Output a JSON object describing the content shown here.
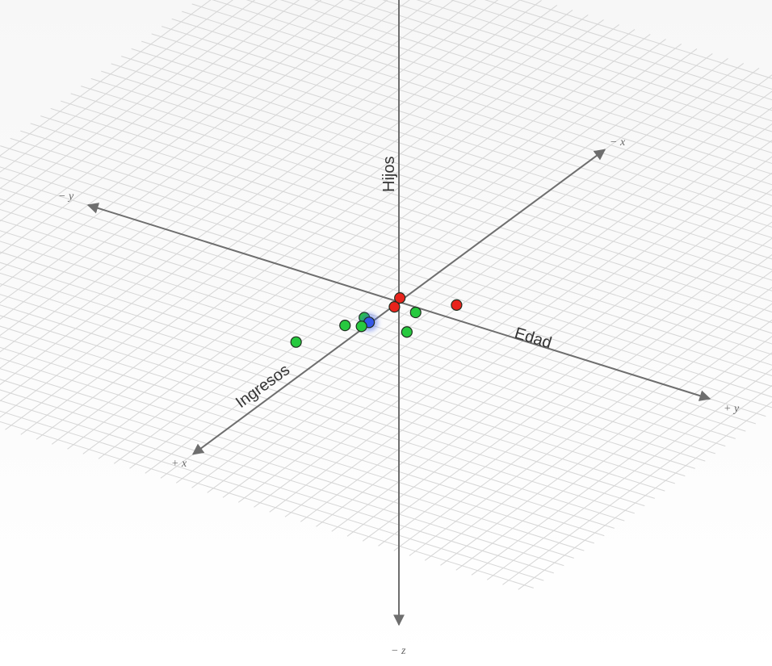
{
  "chart_data": {
    "type": "scatter",
    "title": "",
    "axes": {
      "x": {
        "label": "Ingresos",
        "positive_end": "+ x",
        "negative_end": "− x"
      },
      "y": {
        "label": "Edad",
        "positive_end": "+ y",
        "negative_end": "− y"
      },
      "z": {
        "label": "Hijos",
        "negative_end": "− z"
      }
    },
    "grid": true,
    "series": [
      {
        "color": "#e8231c",
        "points": [
          {
            "x": -0.2,
            "y": -0.1,
            "z": 0.0
          },
          {
            "x": 0.3,
            "y": 0.05,
            "z": 0.0
          },
          {
            "x": -0.7,
            "y": 1.4,
            "z": 0.0
          }
        ]
      },
      {
        "color": "#27c93f",
        "points": [
          {
            "x": 0.25,
            "y": 0.7,
            "z": 0.0
          },
          {
            "x": 1.25,
            "y": -0.3,
            "z": 0.0
          },
          {
            "x": 1.7,
            "y": -0.1,
            "z": 0.0
          },
          {
            "x": 1.9,
            "y": -0.5,
            "z": 0.0
          },
          {
            "x": 1.3,
            "y": 1.1,
            "z": 0.0
          },
          {
            "x": 3.4,
            "y": -1.1,
            "z": 0.0
          }
        ]
      },
      {
        "color": "#3557e8",
        "points": [
          {
            "x": 1.4,
            "y": -0.05,
            "z": 0.0
          }
        ]
      }
    ]
  }
}
